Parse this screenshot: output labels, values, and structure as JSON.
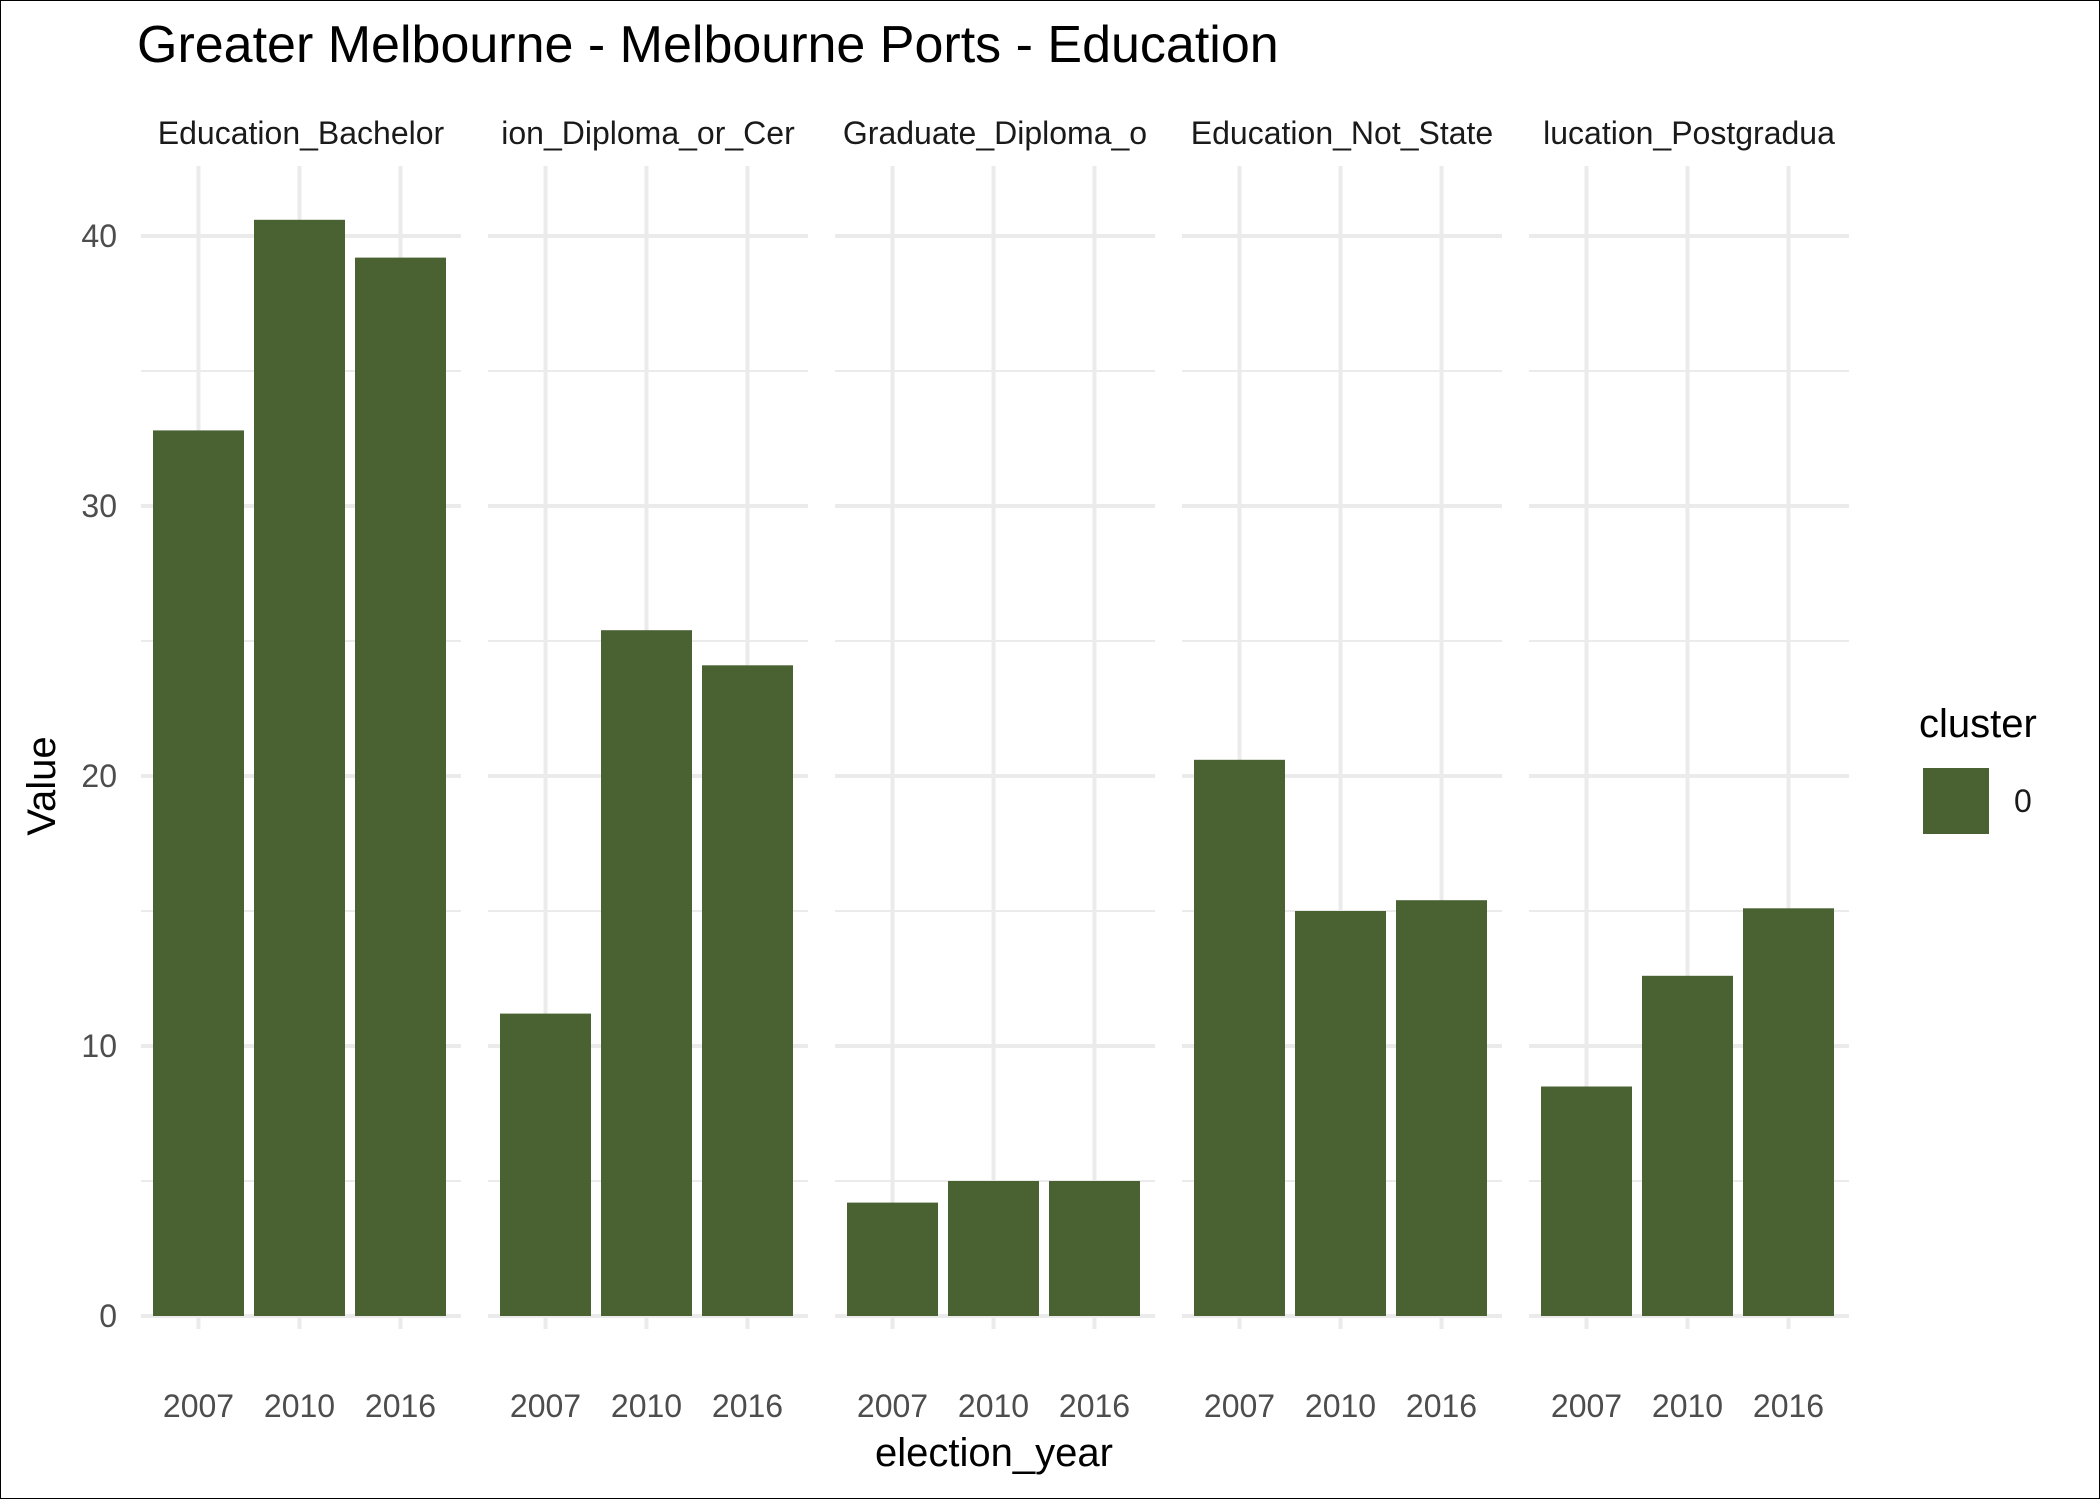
{
  "chart_data": {
    "type": "bar",
    "title": "Greater Melbourne - Melbourne Ports - Education",
    "xlabel": "election_year",
    "ylabel": "Value",
    "ylim": [
      0,
      42
    ],
    "y_ticks": [
      "0",
      "10",
      "20",
      "30",
      "40"
    ],
    "categories": [
      "2007",
      "2010",
      "2016"
    ],
    "bar_color": "#4a6132",
    "grid": true,
    "legend": {
      "title": "cluster",
      "position": "right",
      "items": [
        {
          "label": "0",
          "color": "#4a6132"
        }
      ]
    },
    "facets": [
      {
        "label": "Education_Bachelor",
        "values": [
          32.8,
          40.6,
          39.2
        ]
      },
      {
        "label": "ion_Diploma_or_Cer",
        "values": [
          11.2,
          25.4,
          24.1
        ]
      },
      {
        "label": "Graduate_Diploma_o",
        "values": [
          4.2,
          5.0,
          5.0
        ]
      },
      {
        "label": "Education_Not_State",
        "values": [
          20.6,
          15.0,
          15.4
        ]
      },
      {
        "label": "lucation_Postgradua",
        "values": [
          8.5,
          12.6,
          15.1
        ]
      }
    ]
  }
}
